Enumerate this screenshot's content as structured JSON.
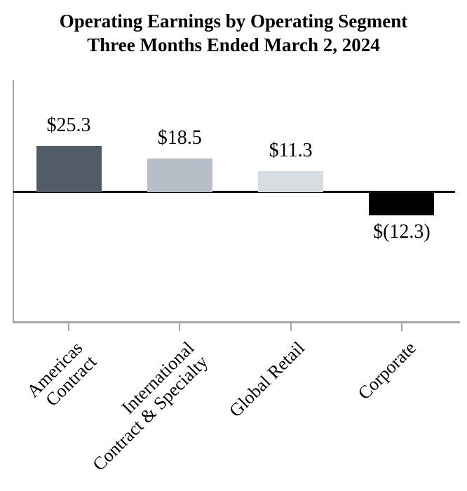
{
  "title": {
    "line1": "Operating Earnings by Operating Segment",
    "line2": "Three Months Ended March 2, 2024"
  },
  "chart_data": {
    "type": "bar",
    "title": "Operating Earnings by Operating Segment",
    "subtitle": "Three Months Ended March 2, 2024",
    "categories": [
      "Americas Contract",
      "International Contract & Specialty",
      "Global Retail",
      "Corporate"
    ],
    "category_label_lines": [
      [
        "Americas",
        "Contract"
      ],
      [
        "International",
        "Contract & Specialty"
      ],
      [
        "Global Retail"
      ],
      [
        "Corporate"
      ]
    ],
    "values": [
      25.3,
      18.5,
      11.3,
      -12.3
    ],
    "data_labels": [
      "$25.3",
      "$18.5",
      "$11.3",
      "$(12.3)"
    ],
    "bar_colors": [
      "#525c66",
      "#b6bfc7",
      "#d8dde1",
      "#000000"
    ],
    "axis_color": "#a6a6a6",
    "zero_line_color": "#0d0d0d",
    "text_color": "#000000",
    "xlabel": "",
    "ylabel": "",
    "ylim": [
      -70,
      61
    ],
    "grid": false,
    "legend": false,
    "x_tick_label_rotation_deg": 45
  }
}
